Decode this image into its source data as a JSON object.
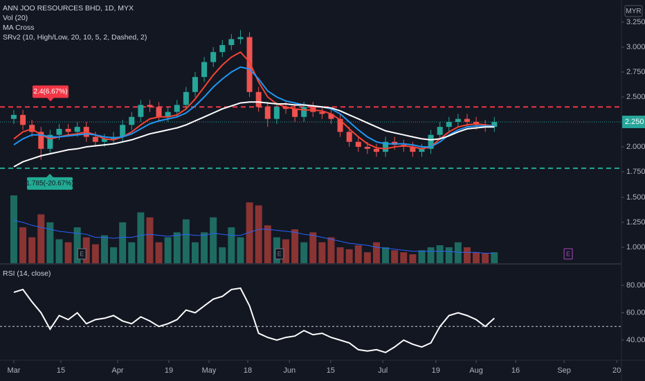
{
  "chart_data": [
    {
      "type": "candlestick",
      "title": "ANN JOO RESOURCES BHD, 1D, MYX",
      "indicators": [
        "Vol (20)",
        "MA Cross",
        "SRv2 (10, High/Low, 20, 10, 5, 2, Dashed, 2)"
      ],
      "unit": "MYR",
      "up_color": "#26a69a",
      "down_color": "#ef5350",
      "x": [
        0,
        2,
        4,
        6,
        8,
        10,
        12,
        14,
        16,
        18,
        20,
        22,
        24,
        26,
        28,
        30,
        32,
        34,
        36,
        38,
        40,
        42,
        44,
        46,
        48,
        50,
        52,
        54,
        56,
        58,
        60,
        62,
        64,
        66,
        68,
        70,
        72,
        74,
        76,
        78,
        80,
        82,
        84,
        86,
        88,
        90,
        92,
        94,
        96,
        98,
        100,
        102,
        104,
        106
      ],
      "open": [
        2.28,
        2.32,
        2.22,
        2.15,
        1.98,
        2.12,
        2.18,
        2.15,
        2.2,
        2.1,
        2.05,
        2.08,
        2.1,
        2.22,
        2.3,
        2.42,
        2.4,
        2.3,
        2.35,
        2.42,
        2.55,
        2.7,
        2.85,
        2.95,
        3.02,
        3.08,
        3.1,
        2.55,
        2.4,
        2.28,
        2.4,
        2.38,
        2.3,
        2.4,
        2.35,
        2.33,
        2.28,
        2.15,
        2.05,
        2.0,
        1.98,
        1.95,
        2.05,
        2.02,
        2.0,
        1.95,
        1.98,
        2.12,
        2.2,
        2.25,
        2.28,
        2.25,
        2.22,
        2.2
      ],
      "high": [
        2.37,
        2.37,
        2.27,
        2.2,
        2.17,
        2.23,
        2.23,
        2.25,
        2.25,
        2.15,
        2.13,
        2.15,
        2.27,
        2.35,
        2.47,
        2.47,
        2.45,
        2.4,
        2.47,
        2.6,
        2.75,
        2.9,
        3.0,
        3.07,
        3.13,
        3.17,
        3.15,
        2.6,
        2.45,
        2.45,
        2.45,
        2.43,
        2.45,
        2.45,
        2.4,
        2.38,
        2.33,
        2.2,
        2.1,
        2.05,
        2.03,
        2.1,
        2.1,
        2.07,
        2.05,
        2.03,
        2.17,
        2.25,
        2.3,
        2.33,
        2.33,
        2.3,
        2.27,
        2.3
      ],
      "low": [
        2.23,
        2.17,
        2.1,
        1.87,
        1.93,
        2.07,
        2.1,
        2.1,
        2.05,
        2.0,
        2.0,
        2.03,
        2.05,
        2.17,
        2.25,
        2.35,
        2.25,
        2.25,
        2.3,
        2.37,
        2.5,
        2.65,
        2.8,
        2.9,
        2.97,
        3.03,
        2.5,
        2.35,
        2.2,
        2.23,
        2.33,
        2.25,
        2.25,
        2.3,
        2.28,
        2.23,
        2.1,
        2.0,
        1.95,
        1.93,
        1.9,
        1.9,
        1.97,
        1.95,
        1.9,
        1.9,
        1.93,
        2.07,
        2.15,
        2.2,
        2.2,
        2.17,
        2.15,
        2.15
      ],
      "close": [
        2.32,
        2.22,
        2.15,
        1.98,
        2.12,
        2.18,
        2.15,
        2.2,
        2.1,
        2.05,
        2.08,
        2.1,
        2.22,
        2.3,
        2.42,
        2.4,
        2.3,
        2.35,
        2.42,
        2.55,
        2.7,
        2.85,
        2.95,
        3.02,
        3.08,
        3.1,
        2.55,
        2.4,
        2.28,
        2.4,
        2.38,
        2.3,
        2.4,
        2.35,
        2.33,
        2.28,
        2.15,
        2.05,
        2.0,
        1.98,
        1.95,
        2.05,
        2.02,
        2.0,
        1.95,
        1.98,
        2.12,
        2.2,
        2.25,
        2.28,
        2.25,
        2.22,
        2.2,
        2.25
      ],
      "series": [
        {
          "color": "#f44336",
          "values": [
            2.08,
            2.15,
            2.18,
            2.12,
            2.08,
            2.1,
            2.12,
            2.13,
            2.15,
            2.12,
            2.08,
            2.07,
            2.1,
            2.15,
            2.22,
            2.28,
            2.3,
            2.3,
            2.32,
            2.38,
            2.48,
            2.6,
            2.72,
            2.82,
            2.9,
            2.95,
            2.85,
            2.65,
            2.5,
            2.43,
            2.4,
            2.38,
            2.37,
            2.37,
            2.36,
            2.33,
            2.27,
            2.18,
            2.1,
            2.03,
            1.99,
            1.98,
            2.0,
            2.01,
            2.0,
            1.98,
            2.0,
            2.08,
            2.15,
            2.2,
            2.22,
            2.23,
            2.22,
            2.21
          ]
        },
        {
          "color": "#2196f3",
          "values": [
            2.02,
            2.08,
            2.12,
            2.12,
            2.1,
            2.1,
            2.11,
            2.12,
            2.13,
            2.12,
            2.1,
            2.09,
            2.1,
            2.13,
            2.18,
            2.23,
            2.26,
            2.28,
            2.3,
            2.34,
            2.41,
            2.5,
            2.6,
            2.68,
            2.75,
            2.8,
            2.78,
            2.68,
            2.56,
            2.5,
            2.46,
            2.44,
            2.42,
            2.41,
            2.4,
            2.38,
            2.33,
            2.25,
            2.17,
            2.1,
            2.05,
            2.03,
            2.03,
            2.03,
            2.02,
            2.0,
            2.0,
            2.05,
            2.12,
            2.17,
            2.2,
            2.21,
            2.21,
            2.21
          ]
        },
        {
          "color": "#ffffff",
          "values": [
            1.8,
            1.85,
            1.88,
            1.91,
            1.93,
            1.95,
            1.97,
            1.98,
            2.0,
            2.01,
            2.02,
            2.03,
            2.05,
            2.07,
            2.1,
            2.13,
            2.15,
            2.17,
            2.19,
            2.22,
            2.26,
            2.3,
            2.34,
            2.38,
            2.41,
            2.44,
            2.45,
            2.45,
            2.44,
            2.43,
            2.43,
            2.42,
            2.42,
            2.41,
            2.4,
            2.39,
            2.36,
            2.32,
            2.28,
            2.24,
            2.2,
            2.16,
            2.14,
            2.12,
            2.1,
            2.08,
            2.07,
            2.08,
            2.11,
            2.15,
            2.18,
            2.19,
            2.2,
            2.2
          ]
        }
      ],
      "levels": [
        {
          "value": 2.4,
          "label": "2.4(6.67%)",
          "color": "#f23645"
        },
        {
          "value": 1.785,
          "label": "1.785(-20.67%)",
          "color": "#22ab94"
        }
      ],
      "last": {
        "value": 2.25,
        "label": "2.250"
      },
      "xlim": [
        -3.05,
        134.05
      ],
      "ylim": [
        0.833,
        3.472
      ],
      "yticks": [
        {
          "value": 1.75,
          "label": "1.750"
        },
        {
          "value": 2.0,
          "label": "2.000"
        },
        {
          "value": 2.5,
          "label": "2.500"
        },
        {
          "value": 2.75,
          "label": "2.750"
        },
        {
          "value": 3.0,
          "label": "3.000"
        },
        {
          "value": 3.25,
          "label": "3.250"
        }
      ],
      "grid": false
    },
    {
      "type": "bar",
      "up_color": "#1e6b62",
      "down_color": "#8a3433",
      "ma_color": "#2962ff",
      "x": [
        0,
        2,
        4,
        6,
        8,
        10,
        12,
        14,
        16,
        18,
        20,
        22,
        24,
        26,
        28,
        30,
        32,
        34,
        36,
        38,
        40,
        42,
        44,
        46,
        48,
        50,
        52,
        54,
        56,
        58,
        60,
        62,
        64,
        66,
        68,
        70,
        72,
        74,
        76,
        78,
        80,
        82,
        84,
        86,
        88,
        90,
        92,
        94,
        96,
        98,
        100,
        102,
        104,
        106
      ],
      "values": [
        1.52,
        1.2,
        1.1,
        1.33,
        1.25,
        1.08,
        1.05,
        1.2,
        1.1,
        1.03,
        1.12,
        1.0,
        1.25,
        1.05,
        1.35,
        1.3,
        1.05,
        1.1,
        1.15,
        1.28,
        1.05,
        1.15,
        1.3,
        1.0,
        1.2,
        1.1,
        1.45,
        1.42,
        1.22,
        1.1,
        1.08,
        1.18,
        1.05,
        1.15,
        1.05,
        1.1,
        1.0,
        0.98,
        1.02,
        0.95,
        1.05,
        1.0,
        0.97,
        0.95,
        0.93,
        0.97,
        1.0,
        1.02,
        1.0,
        1.05,
        1.0,
        0.95,
        0.94,
        0.95
      ],
      "ma": [
        1.27,
        1.25,
        1.22,
        1.2,
        1.18,
        1.16,
        1.15,
        1.14,
        1.13,
        1.1,
        1.1,
        1.09,
        1.1,
        1.1,
        1.12,
        1.13,
        1.12,
        1.11,
        1.12,
        1.13,
        1.12,
        1.12,
        1.14,
        1.13,
        1.12,
        1.12,
        1.15,
        1.18,
        1.18,
        1.17,
        1.16,
        1.15,
        1.13,
        1.12,
        1.1,
        1.08,
        1.06,
        1.04,
        1.03,
        1.02,
        1.0,
        0.99,
        0.98,
        0.97,
        0.96,
        0.96,
        0.96,
        0.96,
        0.96,
        0.95,
        0.95,
        0.95,
        0.94,
        0.94
      ],
      "events": [
        {
          "x": 15,
          "label": "E",
          "color": "#787b86"
        },
        {
          "x": 58.6,
          "label": "E",
          "color": "#787b86"
        },
        {
          "x": 122.3,
          "label": "E",
          "color": "#ab47bc"
        }
      ],
      "xlim": [
        -3.05,
        134.05
      ],
      "ylim": [
        0.84,
        3.479
      ],
      "yticks": [
        {
          "value": 1.0,
          "label": "1.000"
        },
        {
          "value": 1.25,
          "label": "1.250"
        },
        {
          "value": 1.5,
          "label": "1.500"
        }
      ]
    },
    {
      "type": "line",
      "title": "RSI (14, close)",
      "color": "#ffffff",
      "x": [
        0,
        2,
        4,
        6,
        8,
        10,
        12,
        14,
        16,
        18,
        20,
        22,
        24,
        26,
        28,
        30,
        32,
        34,
        36,
        38,
        40,
        42,
        44,
        46,
        48,
        50,
        52,
        54,
        56,
        58,
        60,
        62,
        64,
        66,
        68,
        70,
        72,
        74,
        76,
        78,
        80,
        82,
        84,
        86,
        88,
        90,
        92,
        94,
        96,
        98,
        100,
        102,
        104,
        106
      ],
      "values": [
        75,
        77,
        68,
        60,
        48,
        58,
        55,
        60,
        52,
        55,
        56,
        58,
        54,
        52,
        57,
        54,
        50,
        52,
        55,
        62,
        60,
        65,
        70,
        72,
        77,
        78,
        65,
        45,
        42,
        40,
        42,
        43,
        47,
        44,
        45,
        42,
        40,
        38,
        33,
        32,
        33,
        31,
        35,
        40,
        37,
        35,
        38,
        50,
        58,
        60,
        58,
        55,
        50,
        56
      ],
      "midline": 50,
      "xlim": [
        -3.05,
        134.05
      ],
      "ylim": [
        25.32,
        95.19
      ],
      "yticks": [
        {
          "value": 40,
          "label": "40.00"
        },
        {
          "value": 60,
          "label": "60.00"
        },
        {
          "value": 80,
          "label": "80.00"
        }
      ],
      "xticks": [
        {
          "value": 0,
          "label": "Mar"
        },
        {
          "value": 10.38,
          "label": "15"
        },
        {
          "value": 22.9,
          "label": "Apr"
        },
        {
          "value": 34.2,
          "label": "19"
        },
        {
          "value": 43.05,
          "label": "May"
        },
        {
          "value": 51.6,
          "label": "18"
        },
        {
          "value": 60.8,
          "label": "Jun"
        },
        {
          "value": 69.9,
          "label": "15"
        },
        {
          "value": 81.4,
          "label": "Jul"
        },
        {
          "value": 93.1,
          "label": "19"
        },
        {
          "value": 102,
          "label": "Aug"
        },
        {
          "value": 110.7,
          "label": "16"
        },
        {
          "value": 121.4,
          "label": "Sep"
        },
        {
          "value": 133,
          "label": "20"
        }
      ]
    }
  ]
}
